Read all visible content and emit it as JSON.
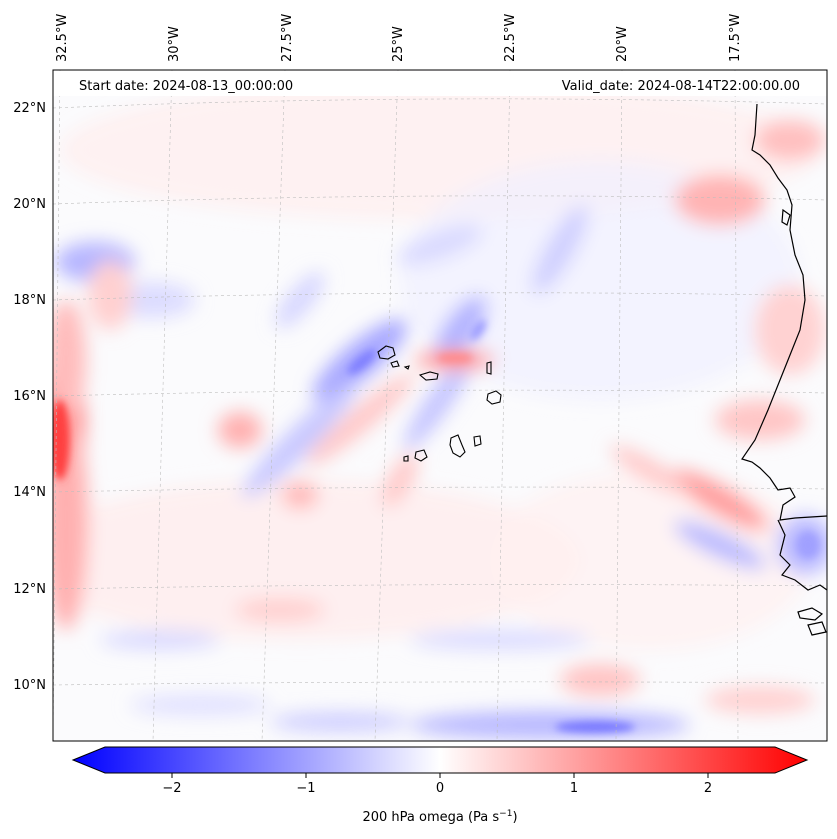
{
  "header": {
    "start_date": "Start date: 2024-08-13_00:00:00",
    "valid_date": "Valid_date: 2024-08-14T22:00:00.00"
  },
  "map": {
    "lon_ticks": [
      "32.5°W",
      "30°W",
      "27.5°W",
      "25°W",
      "22.5°W",
      "20°W",
      "17.5°W"
    ],
    "lat_ticks": [
      "22°N",
      "20°N",
      "18°N",
      "16°N",
      "14°N",
      "12°N",
      "10°N"
    ],
    "field": "200 hPa omega",
    "colormap": [
      "#0000ff",
      "#ffffff",
      "#ff0000"
    ],
    "coastline_color": "#000000",
    "gridline_color": "#bdbdbd"
  },
  "colorbar": {
    "ticks": [
      "−2",
      "−1",
      "0",
      "1",
      "2"
    ],
    "tick_values": [
      -2,
      -1,
      0,
      1,
      2
    ],
    "range": [
      -2.6,
      2.6
    ],
    "label_prefix": "200 hPa omega (Pa s",
    "label_exp": "−1",
    "label_suffix": ")"
  }
}
